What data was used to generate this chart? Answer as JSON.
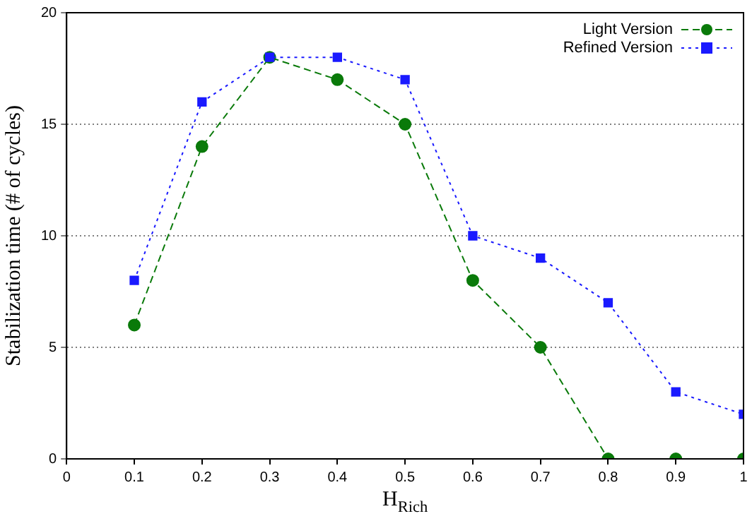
{
  "chart_data": {
    "type": "line",
    "xlabel": "H$_{Rich}$",
    "ylabel": "Stabilization time (# of cycles)",
    "x": [
      0.1,
      0.2,
      0.3,
      0.4,
      0.5,
      0.6,
      0.7,
      0.8,
      0.9,
      1
    ],
    "series": [
      {
        "name": "Light Version",
        "color": "#0a7a0a",
        "marker": "circle",
        "line_style": "dashed",
        "values": [
          6,
          14,
          18,
          17,
          15,
          8,
          5,
          0,
          0,
          0
        ]
      },
      {
        "name": "Refined Version",
        "color": "#1a1aff",
        "marker": "square",
        "line_style": "dotted",
        "values": [
          8,
          16,
          18,
          18,
          17,
          10,
          9,
          7,
          3,
          2
        ]
      }
    ],
    "xlim": [
      0,
      1
    ],
    "xticks": [
      0,
      0.1,
      0.2,
      0.3,
      0.4,
      0.5,
      0.6,
      0.7,
      0.8,
      0.9,
      1
    ],
    "ylim": [
      0,
      20
    ],
    "yticks": [
      0,
      5,
      10,
      15,
      20
    ],
    "grid": "y",
    "legend": "top right"
  }
}
